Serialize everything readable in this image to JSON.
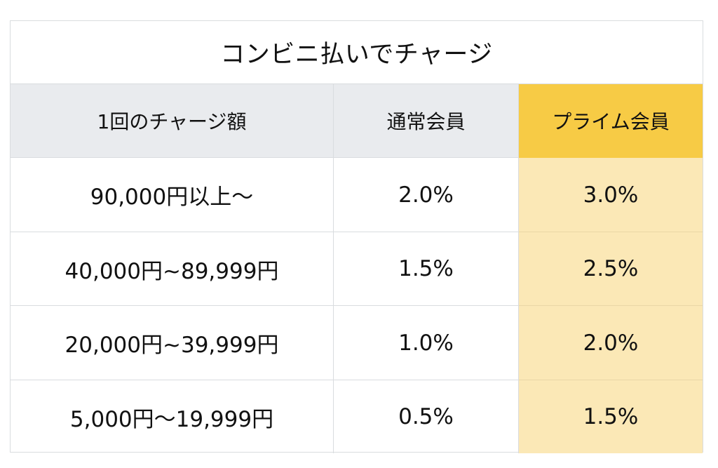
{
  "table": {
    "title": "コンビニ払いでチャージ",
    "headers": {
      "amount": "1回のチャージ額",
      "regular": "通常会員",
      "prime": "プライム会員"
    },
    "rows": [
      {
        "amount": "90,000円以上～",
        "regular": "2.0%",
        "prime": "3.0%"
      },
      {
        "amount": "40,000円~89,999円",
        "regular": "1.5%",
        "prime": "2.5%"
      },
      {
        "amount": "20,000円~39,999円",
        "regular": "1.0%",
        "prime": "2.0%"
      },
      {
        "amount": "5,000円～19,999円",
        "regular": "0.5%",
        "prime": "1.5%"
      }
    ],
    "colors": {
      "header_gray": "#e9ebee",
      "prime_header": "#f7cb45",
      "prime_column": "#fbe8b6",
      "border": "#d9dcdf"
    }
  }
}
